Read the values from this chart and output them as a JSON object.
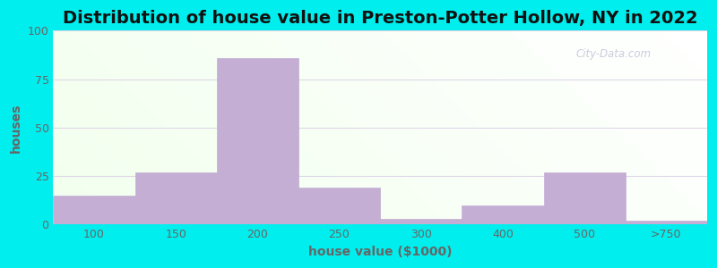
{
  "title": "Distribution of house value in Preston-Potter Hollow, NY in 2022",
  "xlabel": "house value ($1000)",
  "ylabel": "houses",
  "categories": [
    "100",
    "150",
    "200",
    "250",
    "300",
    "400",
    "500",
    ">750"
  ],
  "values": [
    15,
    27,
    86,
    19,
    3,
    10,
    27,
    2
  ],
  "bar_color": "#c4aed4",
  "bar_edgecolor": "#c4aed4",
  "ylim": [
    0,
    100
  ],
  "yticks": [
    0,
    25,
    50,
    75,
    100
  ],
  "outer_bg": "#00eeee",
  "title_fontsize": 14,
  "label_fontsize": 10,
  "tick_fontsize": 9,
  "watermark_text": "City-Data.com",
  "grid_color": "#e0d8e8",
  "tick_color": "#666666"
}
